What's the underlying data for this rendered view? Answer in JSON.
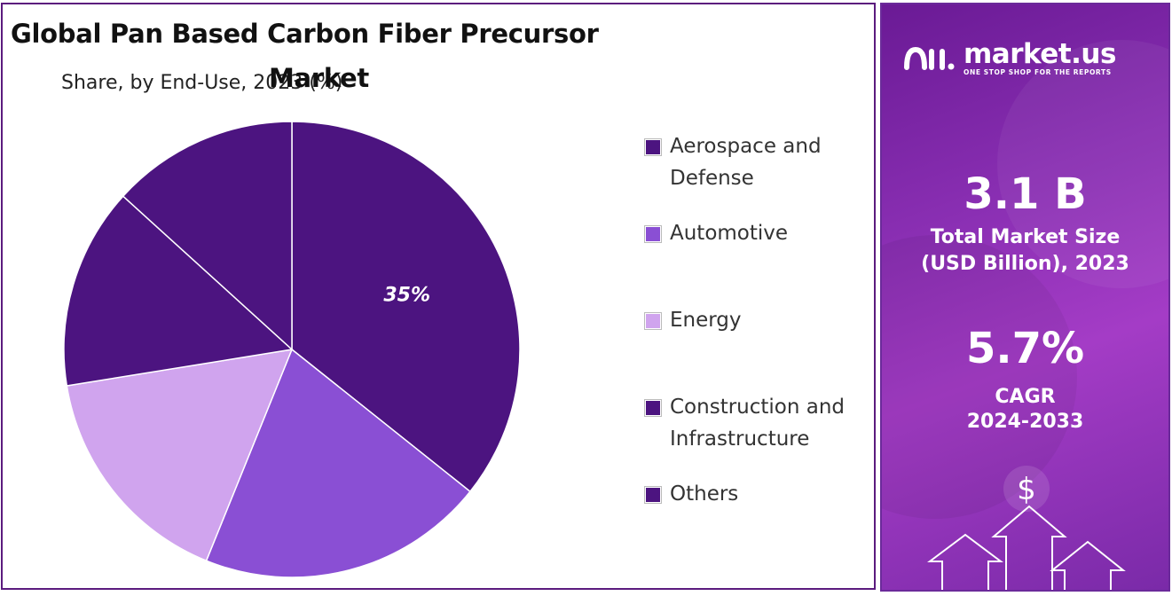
{
  "title": {
    "line1": "Global Pan Based Carbon Fiber Precursor",
    "line2": "Market"
  },
  "subtitle": "Share, by End-Use, 2023 (%)",
  "chart_data": {
    "type": "pie",
    "categories": [
      "Aerospace and Defense",
      "Automotive",
      "Energy",
      "Construction and Infrastructure",
      "Others"
    ],
    "values": [
      35,
      20,
      16,
      14,
      13
    ],
    "data_labels": [
      "35%",
      "",
      "",
      "",
      ""
    ],
    "colors": [
      "#4c1480",
      "#8a4fd4",
      "#d0a4ee",
      "#4c1480",
      "#4c1480"
    ],
    "legend_position": "right"
  },
  "legend": [
    {
      "label": "Aerospace and Defense",
      "color": "#4c1480"
    },
    {
      "label": "Automotive",
      "color": "#8a4fd4"
    },
    {
      "label": "Energy",
      "color": "#d0a4ee"
    },
    {
      "label": "Construction and Infrastructure",
      "color": "#4c1480"
    },
    {
      "label": "Others",
      "color": "#4c1480"
    }
  ],
  "brand": {
    "name": "market.us",
    "tagline": "ONE STOP SHOP FOR THE REPORTS",
    "logo_icon": "market-us-logo-icon"
  },
  "stats": {
    "market_size": {
      "value": "3.1 B",
      "label_line1": "Total Market Size",
      "label_line2": "(USD Billion), 2023"
    },
    "cagr": {
      "value": "5.7%",
      "label_line1": "CAGR",
      "label_line2": "2024-2033"
    }
  },
  "decor": {
    "dollar_icon": "dollar-icon",
    "arrows_icon": "growth-arrows-icon",
    "dollar_glyph": "$"
  }
}
